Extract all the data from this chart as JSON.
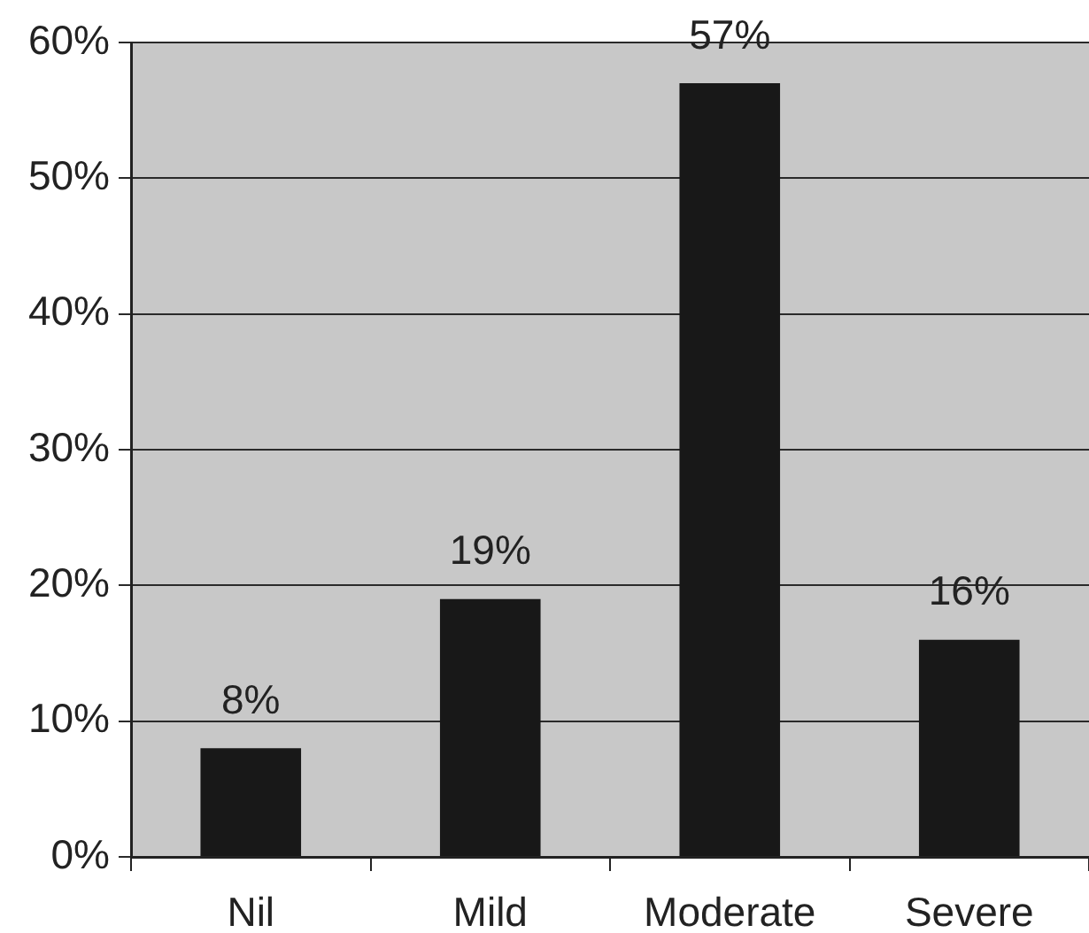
{
  "chart_data": {
    "type": "bar",
    "categories": [
      "Nil",
      "Mild",
      "Moderate",
      "Severe"
    ],
    "values": [
      8,
      19,
      57,
      16
    ],
    "color": "#181818",
    "value_labels": [
      "8%",
      "19%",
      "57%",
      "16%"
    ],
    "ylim": [
      0,
      60
    ],
    "yticks": [
      {
        "value": 0,
        "label": "0%"
      },
      {
        "value": 10,
        "label": "10%"
      },
      {
        "value": 20,
        "label": "20%"
      },
      {
        "value": 30,
        "label": "30%"
      },
      {
        "value": 40,
        "label": "40%"
      },
      {
        "value": 50,
        "label": "50%"
      },
      {
        "value": 60,
        "label": "60%"
      }
    ],
    "grid": "y"
  }
}
